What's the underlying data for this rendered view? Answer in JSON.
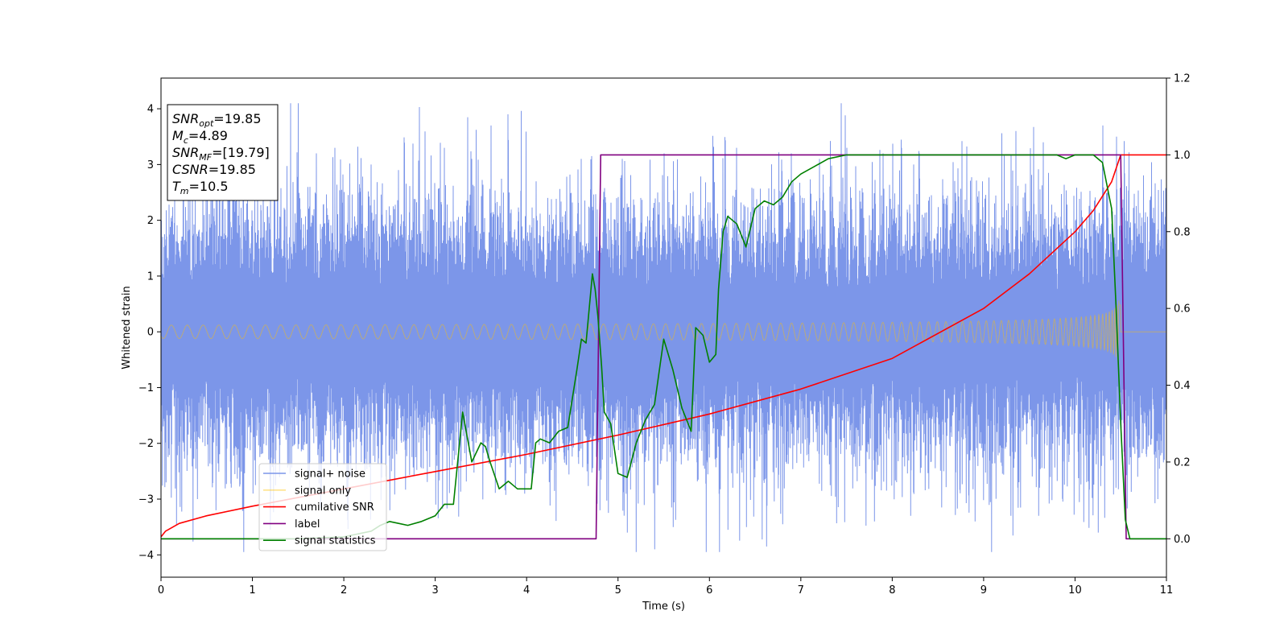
{
  "chart_data": {
    "type": "line",
    "xlabel": "Time (s)",
    "ylabel": "Whitened strain",
    "xlim": [
      0,
      11
    ],
    "ylim": [
      -4.4,
      4.55
    ],
    "y2lim": [
      -0.1,
      1.2
    ],
    "xticks": [
      "0",
      "1",
      "2",
      "3",
      "4",
      "5",
      "6",
      "7",
      "8",
      "9",
      "10",
      "11"
    ],
    "yticks": [
      "4",
      "3",
      "2",
      "1",
      "0",
      "−1",
      "−2",
      "−3",
      "−4"
    ],
    "y2ticks": [
      "1.2",
      "1.0",
      "0.8",
      "0.6",
      "0.4",
      "0.2",
      "0.0"
    ],
    "legend_position": "lower-left",
    "annotation_box": {
      "lines": [
        {
          "main": "SNR",
          "sub": "opt",
          "rest": "=19.85"
        },
        {
          "main": "M",
          "sub": "c",
          "rest": "=4.89"
        },
        {
          "main": "SNR",
          "sub": "MF",
          "rest": "=[19.79]"
        },
        {
          "main": "CSNR",
          "sub": "",
          "rest": "=19.85"
        },
        {
          "main": "T",
          "sub": "m",
          "rest": "=10.5"
        }
      ]
    },
    "series": [
      {
        "name": "signal+ noise",
        "axis": "left",
        "color": "#7590e8",
        "kind": "noise",
        "noise_std": 1.0,
        "spikes": [
          [
            0.25,
            3.1
          ],
          [
            0.3,
            2.7
          ],
          [
            0.55,
            2.9
          ],
          [
            0.8,
            3.0
          ],
          [
            1.2,
            2.8
          ],
          [
            1.42,
            4.15
          ],
          [
            1.7,
            3.2
          ],
          [
            1.9,
            3.3
          ],
          [
            2.3,
            3.0
          ],
          [
            2.6,
            2.9
          ],
          [
            3.1,
            3.3
          ],
          [
            3.4,
            3.1
          ],
          [
            3.8,
            3.9
          ],
          [
            4.1,
            2.7
          ],
          [
            4.6,
            3.1
          ],
          [
            5.05,
            3.1
          ],
          [
            5.5,
            3.2
          ],
          [
            6.2,
            3.2
          ],
          [
            6.3,
            3.3
          ],
          [
            6.4,
            3.1
          ],
          [
            6.9,
            3.2
          ],
          [
            7.2,
            3.1
          ],
          [
            7.5,
            3.3
          ],
          [
            7.9,
            3.2
          ],
          [
            8.1,
            3.3
          ],
          [
            8.3,
            3.2
          ],
          [
            8.9,
            3.4
          ],
          [
            9.35,
            3.6
          ],
          [
            9.65,
            3.4
          ],
          [
            10.3,
            3.7
          ],
          [
            10.45,
            3.5
          ],
          [
            0.05,
            -2.7
          ],
          [
            0.4,
            -3.0
          ],
          [
            0.6,
            -3.2
          ],
          [
            1.0,
            -2.9
          ],
          [
            1.75,
            -2.9
          ],
          [
            2.5,
            -3.2
          ],
          [
            3.0,
            -3.1
          ],
          [
            4.8,
            -3.2
          ],
          [
            5.1,
            -3.6
          ],
          [
            5.2,
            -3.95
          ],
          [
            5.4,
            -3.9
          ],
          [
            5.6,
            -3.5
          ],
          [
            6.2,
            -3.55
          ],
          [
            6.4,
            -3.5
          ],
          [
            6.8,
            -3.45
          ],
          [
            7.8,
            -3.4
          ],
          [
            8.2,
            -3.3
          ],
          [
            8.9,
            -3.4
          ],
          [
            9.6,
            -3.3
          ],
          [
            10.25,
            -3.6
          ],
          [
            10.9,
            -3.0
          ]
        ]
      },
      {
        "name": "signal only",
        "axis": "left",
        "color": "#ffc000",
        "kind": "chirp",
        "t_merge": 10.5,
        "amp_start": 0.12,
        "amp_end": 1.9
      },
      {
        "name": "cumilative SNR",
        "axis": "right",
        "color": "#ff0000",
        "kind": "line",
        "x": [
          0,
          0.05,
          0.2,
          0.5,
          1,
          2,
          3,
          4,
          5,
          6,
          7,
          8,
          9,
          9.5,
          10,
          10.2,
          10.4,
          10.5,
          11
        ],
        "y": [
          0.005,
          0.02,
          0.04,
          0.06,
          0.085,
          0.13,
          0.175,
          0.22,
          0.27,
          0.325,
          0.39,
          0.47,
          0.6,
          0.69,
          0.8,
          0.855,
          0.93,
          1.0,
          1.0
        ]
      },
      {
        "name": "label",
        "axis": "right",
        "color": "#800080",
        "kind": "line",
        "x": [
          0,
          4.76,
          4.81,
          10.5,
          10.56,
          11
        ],
        "y": [
          0.0,
          0.0,
          1.0,
          1.0,
          0.0,
          0.0
        ]
      },
      {
        "name": "signal statistics",
        "axis": "right",
        "color": "#008000",
        "kind": "line",
        "x": [
          0,
          0.5,
          1.0,
          1.5,
          2.0,
          2.3,
          2.4,
          2.5,
          2.6,
          2.7,
          2.85,
          3.0,
          3.1,
          3.2,
          3.3,
          3.4,
          3.5,
          3.55,
          3.6,
          3.7,
          3.8,
          3.9,
          4.05,
          4.1,
          4.15,
          4.25,
          4.35,
          4.45,
          4.55,
          4.6,
          4.65,
          4.72,
          4.75,
          4.78,
          4.82,
          4.85,
          4.92,
          5.0,
          5.1,
          5.2,
          5.3,
          5.4,
          5.5,
          5.6,
          5.7,
          5.8,
          5.85,
          5.93,
          6.0,
          6.07,
          6.1,
          6.15,
          6.2,
          6.3,
          6.4,
          6.5,
          6.6,
          6.7,
          6.8,
          6.9,
          7.0,
          7.15,
          7.3,
          7.5,
          8.0,
          9.0,
          9.8,
          9.9,
          10.0,
          10.2,
          10.3,
          10.35,
          10.4,
          10.45,
          10.5,
          10.55,
          10.6,
          10.7,
          11.0
        ],
        "y": [
          0.0,
          0.0,
          0.0,
          0.0,
          0.005,
          0.02,
          0.035,
          0.045,
          0.04,
          0.035,
          0.045,
          0.06,
          0.09,
          0.09,
          0.33,
          0.2,
          0.25,
          0.24,
          0.2,
          0.13,
          0.15,
          0.13,
          0.13,
          0.25,
          0.26,
          0.25,
          0.28,
          0.29,
          0.44,
          0.52,
          0.51,
          0.69,
          0.65,
          0.58,
          0.45,
          0.33,
          0.3,
          0.17,
          0.16,
          0.25,
          0.31,
          0.35,
          0.52,
          0.44,
          0.34,
          0.28,
          0.55,
          0.53,
          0.46,
          0.48,
          0.65,
          0.8,
          0.84,
          0.82,
          0.76,
          0.86,
          0.88,
          0.87,
          0.89,
          0.93,
          0.95,
          0.97,
          0.99,
          1.0,
          1.0,
          1.0,
          1.0,
          0.99,
          1.0,
          1.0,
          0.98,
          0.92,
          0.86,
          0.6,
          0.3,
          0.05,
          0.0,
          0.0,
          0.0
        ]
      }
    ]
  }
}
